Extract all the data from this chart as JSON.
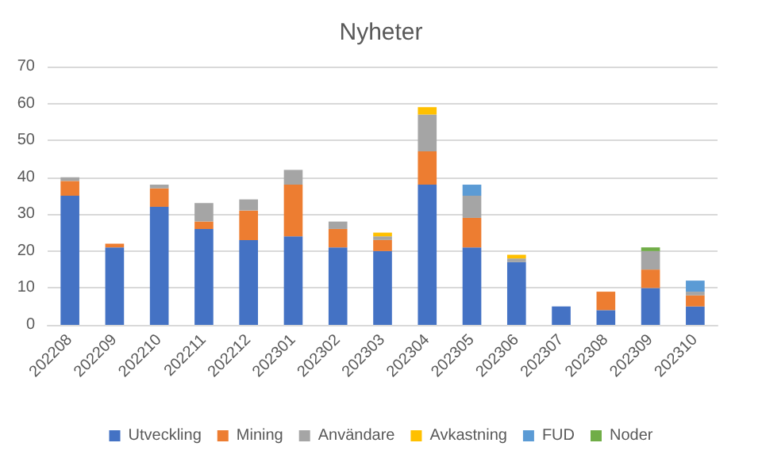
{
  "chart_data": {
    "type": "bar",
    "title": "Nyheter",
    "stacked": true,
    "categories": [
      "202208",
      "202209",
      "202210",
      "202211",
      "202212",
      "202301",
      "202302",
      "202303",
      "202304",
      "202305",
      "202306",
      "202307",
      "202308",
      "202309",
      "202310"
    ],
    "series": [
      {
        "name": "Utveckling",
        "color": "#4472c4",
        "values": [
          35,
          21,
          32,
          26,
          23,
          24,
          21,
          20,
          38,
          21,
          17,
          5,
          4,
          10,
          5
        ]
      },
      {
        "name": "Mining",
        "color": "#ed7d31",
        "values": [
          4,
          1,
          5,
          2,
          8,
          14,
          5,
          3,
          9,
          8,
          null,
          null,
          5,
          5,
          3
        ]
      },
      {
        "name": "Användare",
        "color": "#a5a5a5",
        "values": [
          1,
          null,
          1,
          5,
          3,
          4,
          2,
          1,
          10,
          6,
          1,
          null,
          null,
          5,
          1
        ]
      },
      {
        "name": "Avkastning",
        "color": "#ffc000",
        "values": [
          null,
          null,
          null,
          null,
          null,
          null,
          null,
          1,
          2,
          null,
          1,
          null,
          null,
          null,
          null
        ]
      },
      {
        "name": "FUD",
        "color": "#5b9bd5",
        "values": [
          null,
          null,
          null,
          null,
          null,
          null,
          null,
          null,
          null,
          3,
          null,
          null,
          null,
          null,
          3
        ]
      },
      {
        "name": "Noder",
        "color": "#70ad47",
        "values": [
          null,
          null,
          null,
          null,
          null,
          null,
          null,
          null,
          null,
          null,
          null,
          null,
          null,
          1,
          null
        ]
      }
    ],
    "ylim": [
      0,
      70
    ],
    "yticks": [
      0,
      10,
      20,
      30,
      40,
      50,
      60,
      70
    ],
    "grid": "y",
    "legend": "bottom"
  }
}
